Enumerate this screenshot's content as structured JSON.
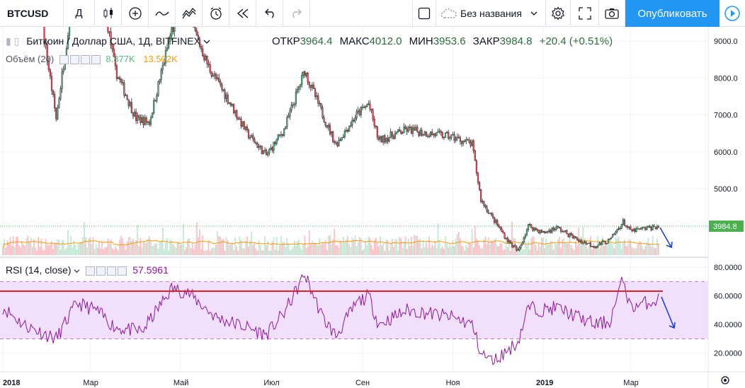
{
  "toolbar": {
    "symbol": "BTCUSD",
    "interval": "Д",
    "layout_name": "Без названия",
    "publish_label": "Опубликовать"
  },
  "legend": {
    "title": "Биткоин / Доллар США, 1Д, BITFINEX",
    "open_label": "ОТКР",
    "open": "3964.4",
    "high_label": "МАКС",
    "high": "4012.0",
    "low_label": "МИН",
    "low": "3953.6",
    "close_label": "ЗАКР",
    "close": "3984.8",
    "change": "+20.4 (+0.51%)"
  },
  "volume_legend": {
    "label": "Объём (20)",
    "value1": "8.877K",
    "value2": "13.502K"
  },
  "rsi_legend": {
    "label": "RSI (14, close)",
    "value": "57.5961"
  },
  "price_axis": {
    "ticks": [
      "9000.0",
      "8000.0",
      "7000.0",
      "6000.0",
      "5000.0"
    ],
    "current_price": "3984.8"
  },
  "rsi_axis": {
    "ticks": [
      "80.0000",
      "60.0000",
      "40.0000",
      "20.0000"
    ]
  },
  "time_axis": {
    "labels": [
      "2018",
      "Мар",
      "Май",
      "Июл",
      "Сен",
      "Ноя",
      "2019",
      "Мар"
    ]
  },
  "colors": {
    "up": "#53b987",
    "down": "#eb4d5c",
    "accent": "#2196f3",
    "rsi_line": "#8e1599",
    "rsi_band": "#f0e0fb",
    "ma_line": "#ff9800"
  },
  "chart_data": {
    "type": "candlestick",
    "title": "Биткоин / Доллар США, 1Д, BITFINEX",
    "x_start": "2018-01-01",
    "x_end": "2019-03-20",
    "ylim": [
      3200,
      9600
    ],
    "close_series": [
      {
        "date": "2018-01-01",
        "value": 13500
      },
      {
        "date": "2018-01-20",
        "value": 11500
      },
      {
        "date": "2018-02-06",
        "value": 6900
      },
      {
        "date": "2018-02-20",
        "value": 11000
      },
      {
        "date": "2018-03-05",
        "value": 11300
      },
      {
        "date": "2018-03-18",
        "value": 8200
      },
      {
        "date": "2018-04-01",
        "value": 6900
      },
      {
        "date": "2018-04-10",
        "value": 6800
      },
      {
        "date": "2018-04-25",
        "value": 9300
      },
      {
        "date": "2018-05-05",
        "value": 9800
      },
      {
        "date": "2018-05-20",
        "value": 8300
      },
      {
        "date": "2018-06-01",
        "value": 7500
      },
      {
        "date": "2018-06-15",
        "value": 6500
      },
      {
        "date": "2018-06-28",
        "value": 5900
      },
      {
        "date": "2018-07-10",
        "value": 6600
      },
      {
        "date": "2018-07-24",
        "value": 8200
      },
      {
        "date": "2018-08-05",
        "value": 7000
      },
      {
        "date": "2018-08-14",
        "value": 6200
      },
      {
        "date": "2018-08-28",
        "value": 7000
      },
      {
        "date": "2018-09-05",
        "value": 7300
      },
      {
        "date": "2018-09-12",
        "value": 6300
      },
      {
        "date": "2018-10-01",
        "value": 6600
      },
      {
        "date": "2018-10-15",
        "value": 6500
      },
      {
        "date": "2018-11-01",
        "value": 6400
      },
      {
        "date": "2018-11-14",
        "value": 6200
      },
      {
        "date": "2018-11-20",
        "value": 4700
      },
      {
        "date": "2018-11-28",
        "value": 4200
      },
      {
        "date": "2018-12-08",
        "value": 3600
      },
      {
        "date": "2018-12-15",
        "value": 3300
      },
      {
        "date": "2018-12-22",
        "value": 4000
      },
      {
        "date": "2019-01-01",
        "value": 3800
      },
      {
        "date": "2019-01-10",
        "value": 3950
      },
      {
        "date": "2019-01-25",
        "value": 3600
      },
      {
        "date": "2019-02-05",
        "value": 3450
      },
      {
        "date": "2019-02-15",
        "value": 3600
      },
      {
        "date": "2019-02-24",
        "value": 4100
      },
      {
        "date": "2019-03-01",
        "value": 3850
      },
      {
        "date": "2019-03-20",
        "value": 3984.8
      }
    ],
    "rsi_ylim": [
      10,
      85
    ],
    "rsi_bands": [
      30,
      70
    ],
    "rsi_series": [
      {
        "date": "2018-01-01",
        "value": 52
      },
      {
        "date": "2018-01-15",
        "value": 40
      },
      {
        "date": "2018-02-06",
        "value": 30
      },
      {
        "date": "2018-02-20",
        "value": 55
      },
      {
        "date": "2018-03-05",
        "value": 50
      },
      {
        "date": "2018-03-18",
        "value": 38
      },
      {
        "date": "2018-04-05",
        "value": 35
      },
      {
        "date": "2018-04-25",
        "value": 65
      },
      {
        "date": "2018-05-05",
        "value": 63
      },
      {
        "date": "2018-05-25",
        "value": 45
      },
      {
        "date": "2018-06-15",
        "value": 38
      },
      {
        "date": "2018-06-28",
        "value": 33
      },
      {
        "date": "2018-07-10",
        "value": 48
      },
      {
        "date": "2018-07-24",
        "value": 75
      },
      {
        "date": "2018-08-05",
        "value": 45
      },
      {
        "date": "2018-08-14",
        "value": 32
      },
      {
        "date": "2018-08-28",
        "value": 55
      },
      {
        "date": "2018-09-05",
        "value": 60
      },
      {
        "date": "2018-09-12",
        "value": 40
      },
      {
        "date": "2018-10-01",
        "value": 50
      },
      {
        "date": "2018-10-15",
        "value": 48
      },
      {
        "date": "2018-11-01",
        "value": 45
      },
      {
        "date": "2018-11-14",
        "value": 40
      },
      {
        "date": "2018-11-20",
        "value": 20
      },
      {
        "date": "2018-11-28",
        "value": 14
      },
      {
        "date": "2018-12-08",
        "value": 22
      },
      {
        "date": "2018-12-15",
        "value": 28
      },
      {
        "date": "2018-12-22",
        "value": 52
      },
      {
        "date": "2019-01-01",
        "value": 50
      },
      {
        "date": "2019-01-10",
        "value": 52
      },
      {
        "date": "2019-01-25",
        "value": 45
      },
      {
        "date": "2019-02-05",
        "value": 40
      },
      {
        "date": "2019-02-15",
        "value": 42
      },
      {
        "date": "2019-02-24",
        "value": 72
      },
      {
        "date": "2019-03-01",
        "value": 52
      },
      {
        "date": "2019-03-20",
        "value": 57.6
      }
    ]
  }
}
